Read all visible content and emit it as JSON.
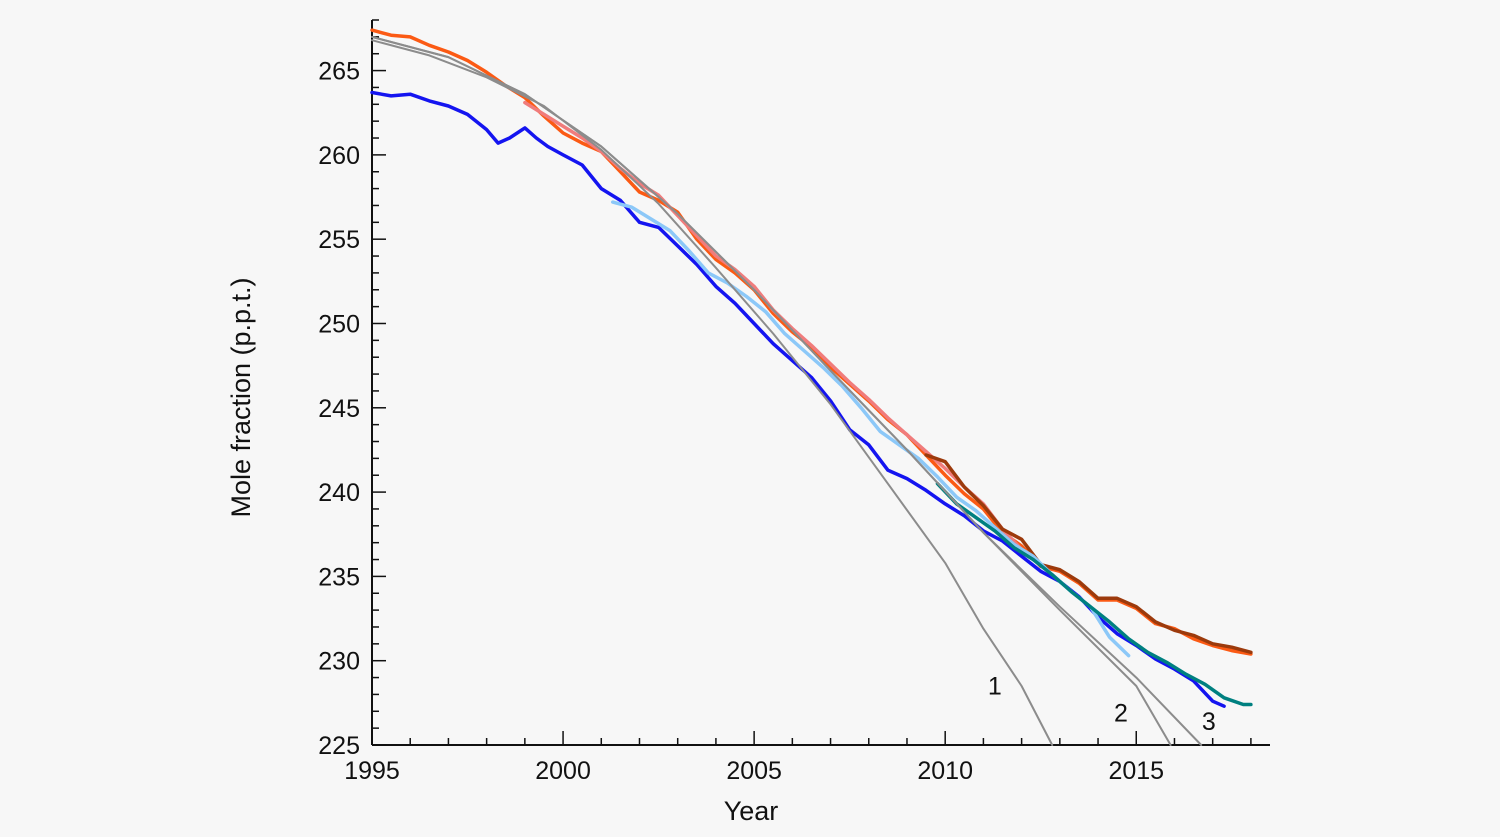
{
  "chart_data": {
    "type": "line",
    "title": "",
    "xlabel": "Year",
    "ylabel": "Mole fraction (p.p.t.)",
    "xlim": [
      1995,
      2018.5
    ],
    "ylim": [
      225,
      268
    ],
    "xticks": [
      1995,
      2000,
      2005,
      2010,
      2015
    ],
    "yticks": [
      225,
      230,
      235,
      240,
      245,
      250,
      255,
      260,
      265
    ],
    "grid": false,
    "legend": "none",
    "series": [
      {
        "color": "#fb5a14",
        "points": [
          [
            1995.0,
            267.4
          ],
          [
            1995.5,
            267.1
          ],
          [
            1996.0,
            267.0
          ],
          [
            1996.5,
            266.5
          ],
          [
            1997.0,
            266.1
          ],
          [
            1997.5,
            265.6
          ],
          [
            1998.0,
            264.9
          ],
          [
            1998.5,
            264.1
          ],
          [
            1999.0,
            263.4
          ],
          [
            1999.5,
            262.3
          ],
          [
            2000.0,
            261.3
          ],
          [
            2000.5,
            260.7
          ],
          [
            2001.0,
            260.2
          ],
          [
            2001.5,
            259.0
          ],
          [
            2002.0,
            257.8
          ],
          [
            2002.5,
            257.3
          ],
          [
            2003.0,
            256.6
          ],
          [
            2003.5,
            255.0
          ],
          [
            2004.0,
            253.8
          ],
          [
            2004.5,
            253.0
          ],
          [
            2005.0,
            252.0
          ],
          [
            2005.5,
            250.6
          ],
          [
            2006.0,
            249.5
          ],
          [
            2006.5,
            248.6
          ],
          [
            2007.0,
            247.4
          ],
          [
            2007.5,
            246.4
          ],
          [
            2008.0,
            245.4
          ],
          [
            2008.5,
            244.3
          ],
          [
            2009.0,
            243.4
          ],
          [
            2009.5,
            242.2
          ],
          [
            2010.0,
            241.0
          ],
          [
            2010.5,
            239.9
          ],
          [
            2011.0,
            239.0
          ],
          [
            2011.5,
            237.6
          ],
          [
            2012.0,
            236.8
          ],
          [
            2012.5,
            235.6
          ],
          [
            2013.0,
            235.3
          ],
          [
            2013.5,
            234.6
          ],
          [
            2014.0,
            233.6
          ],
          [
            2014.5,
            233.6
          ],
          [
            2015.0,
            233.1
          ],
          [
            2015.5,
            232.2
          ],
          [
            2016.0,
            231.9
          ],
          [
            2016.5,
            231.3
          ],
          [
            2017.0,
            230.9
          ],
          [
            2017.5,
            230.6
          ],
          [
            2018.0,
            230.4
          ]
        ]
      },
      {
        "color": "#f07c7c",
        "points": [
          [
            1999.0,
            263.1
          ],
          [
            1999.5,
            262.4
          ],
          [
            2000.0,
            261.7
          ],
          [
            2000.5,
            261.0
          ],
          [
            2001.0,
            260.2
          ],
          [
            2001.5,
            259.2
          ],
          [
            2002.0,
            258.3
          ],
          [
            2002.5,
            257.6
          ],
          [
            2003.0,
            256.4
          ],
          [
            2003.5,
            255.2
          ],
          [
            2004.0,
            254.0
          ],
          [
            2004.5,
            253.2
          ],
          [
            2005.0,
            252.2
          ],
          [
            2005.5,
            250.8
          ],
          [
            2006.0,
            249.7
          ],
          [
            2006.5,
            248.7
          ],
          [
            2007.0,
            247.6
          ],
          [
            2007.5,
            246.5
          ],
          [
            2008.0,
            245.5
          ],
          [
            2008.5,
            244.4
          ],
          [
            2009.0,
            243.4
          ],
          [
            2009.5,
            242.4
          ],
          [
            2010.0,
            241.4
          ],
          [
            2010.5,
            240.3
          ],
          [
            2011.0,
            239.3
          ],
          [
            2011.5,
            237.8
          ],
          [
            2012.0,
            236.6
          ]
        ]
      },
      {
        "color": "#9c3a0c",
        "points": [
          [
            2009.5,
            242.2
          ],
          [
            2010.0,
            241.8
          ],
          [
            2010.5,
            240.3
          ],
          [
            2011.0,
            239.2
          ],
          [
            2011.5,
            237.8
          ],
          [
            2012.0,
            237.2
          ],
          [
            2012.5,
            235.7
          ],
          [
            2013.0,
            235.4
          ],
          [
            2013.5,
            234.7
          ],
          [
            2014.0,
            233.7
          ],
          [
            2014.5,
            233.7
          ],
          [
            2015.0,
            233.2
          ],
          [
            2015.5,
            232.3
          ],
          [
            2016.0,
            231.8
          ],
          [
            2016.5,
            231.5
          ],
          [
            2017.0,
            231.0
          ],
          [
            2017.5,
            230.8
          ],
          [
            2018.0,
            230.5
          ]
        ]
      },
      {
        "color": "#1414f0",
        "points": [
          [
            1995.0,
            263.7
          ],
          [
            1995.5,
            263.5
          ],
          [
            1996.0,
            263.6
          ],
          [
            1996.5,
            263.2
          ],
          [
            1997.0,
            262.9
          ],
          [
            1997.5,
            262.4
          ],
          [
            1998.0,
            261.5
          ],
          [
            1998.3,
            260.7
          ],
          [
            1998.6,
            261.0
          ],
          [
            1999.0,
            261.6
          ],
          [
            1999.3,
            261.0
          ],
          [
            1999.6,
            260.5
          ],
          [
            2000.0,
            260.0
          ],
          [
            2000.5,
            259.4
          ],
          [
            2001.0,
            258.0
          ],
          [
            2001.5,
            257.3
          ],
          [
            2002.0,
            256.0
          ],
          [
            2002.5,
            255.7
          ],
          [
            2003.0,
            254.6
          ],
          [
            2003.5,
            253.5
          ],
          [
            2004.0,
            252.2
          ],
          [
            2004.5,
            251.2
          ],
          [
            2005.0,
            250.0
          ],
          [
            2005.5,
            248.8
          ],
          [
            2006.0,
            247.8
          ],
          [
            2006.5,
            246.8
          ],
          [
            2007.0,
            245.4
          ],
          [
            2007.5,
            243.7
          ],
          [
            2008.0,
            242.8
          ],
          [
            2008.5,
            241.3
          ],
          [
            2009.0,
            240.8
          ],
          [
            2009.5,
            240.1
          ],
          [
            2010.0,
            239.3
          ],
          [
            2010.5,
            238.6
          ],
          [
            2011.0,
            237.7
          ],
          [
            2011.5,
            237.1
          ],
          [
            2012.0,
            236.2
          ],
          [
            2012.5,
            235.3
          ],
          [
            2013.0,
            234.7
          ],
          [
            2013.5,
            233.8
          ],
          [
            2014.0,
            232.6
          ],
          [
            2014.5,
            231.6
          ],
          [
            2015.0,
            230.9
          ],
          [
            2015.5,
            230.1
          ],
          [
            2016.0,
            229.5
          ],
          [
            2016.5,
            228.8
          ],
          [
            2017.0,
            227.6
          ],
          [
            2017.3,
            227.3
          ]
        ]
      },
      {
        "color": "#8cc8f8",
        "points": [
          [
            2001.3,
            257.2
          ],
          [
            2001.8,
            256.9
          ],
          [
            2002.3,
            256.2
          ],
          [
            2002.8,
            255.5
          ],
          [
            2003.3,
            254.3
          ],
          [
            2003.8,
            253.0
          ],
          [
            2004.3,
            252.4
          ],
          [
            2004.8,
            251.6
          ],
          [
            2005.3,
            250.7
          ],
          [
            2005.8,
            249.4
          ],
          [
            2006.3,
            248.4
          ],
          [
            2006.8,
            247.4
          ],
          [
            2007.3,
            246.3
          ],
          [
            2007.8,
            245.0
          ],
          [
            2008.3,
            243.6
          ],
          [
            2008.8,
            242.8
          ],
          [
            2009.3,
            242.0
          ],
          [
            2009.8,
            240.9
          ],
          [
            2010.3,
            239.7
          ],
          [
            2010.8,
            238.9
          ],
          [
            2011.3,
            237.9
          ],
          [
            2011.8,
            236.9
          ],
          [
            2012.3,
            236.2
          ],
          [
            2012.8,
            235.1
          ],
          [
            2013.3,
            234.1
          ],
          [
            2013.8,
            233.2
          ],
          [
            2014.3,
            231.4
          ],
          [
            2014.8,
            230.3
          ]
        ]
      },
      {
        "color": "#008080",
        "points": [
          [
            2009.8,
            240.5
          ],
          [
            2010.3,
            239.3
          ],
          [
            2010.8,
            238.5
          ],
          [
            2011.3,
            237.7
          ],
          [
            2011.8,
            236.7
          ],
          [
            2012.3,
            236.0
          ],
          [
            2012.8,
            235.1
          ],
          [
            2013.3,
            234.1
          ],
          [
            2013.8,
            233.2
          ],
          [
            2014.3,
            232.3
          ],
          [
            2014.8,
            231.3
          ],
          [
            2015.3,
            230.5
          ],
          [
            2015.8,
            229.9
          ],
          [
            2016.3,
            229.2
          ],
          [
            2016.8,
            228.6
          ],
          [
            2017.3,
            227.8
          ],
          [
            2017.8,
            227.4
          ],
          [
            2018.0,
            227.4
          ]
        ]
      },
      {
        "color": "#8c8c8c",
        "points": [
          [
            1995.0,
            266.8
          ],
          [
            1996.5,
            265.9
          ],
          [
            1998.0,
            264.6
          ],
          [
            1999.5,
            262.9
          ],
          [
            2001.0,
            260.3
          ],
          [
            2002.5,
            257.1
          ],
          [
            2004.0,
            253.3
          ],
          [
            2005.5,
            249.4
          ],
          [
            2007.0,
            245.2
          ],
          [
            2008.5,
            240.5
          ],
          [
            2010.0,
            235.8
          ],
          [
            2011.0,
            231.9
          ],
          [
            2012.0,
            228.5
          ],
          [
            2012.8,
            225.0
          ]
        ]
      },
      {
        "color": "#8c8c8c",
        "points": [
          [
            1995.0,
            267.0
          ],
          [
            1997.0,
            265.8
          ],
          [
            1999.0,
            263.6
          ],
          [
            2001.0,
            260.5
          ],
          [
            2003.0,
            256.5
          ],
          [
            2005.0,
            252.0
          ],
          [
            2007.0,
            247.2
          ],
          [
            2009.0,
            242.5
          ],
          [
            2011.0,
            237.6
          ],
          [
            2013.0,
            233.0
          ],
          [
            2015.0,
            228.5
          ],
          [
            2015.9,
            225.0
          ]
        ]
      },
      {
        "color": "#8c8c8c",
        "points": [
          [
            1995.0,
            267.0
          ],
          [
            1997.0,
            265.8
          ],
          [
            1999.0,
            263.6
          ],
          [
            2001.0,
            260.5
          ],
          [
            2003.0,
            256.5
          ],
          [
            2005.0,
            252.0
          ],
          [
            2007.0,
            247.2
          ],
          [
            2009.0,
            242.5
          ],
          [
            2011.0,
            237.6
          ],
          [
            2013.0,
            233.2
          ],
          [
            2015.0,
            229.0
          ],
          [
            2016.7,
            225.0
          ]
        ]
      }
    ],
    "annotations": [
      {
        "text": "1",
        "x": 2011.3,
        "y": 228.0
      },
      {
        "text": "2",
        "x": 2014.6,
        "y": 226.4
      },
      {
        "text": "3",
        "x": 2016.9,
        "y": 225.9
      }
    ]
  }
}
